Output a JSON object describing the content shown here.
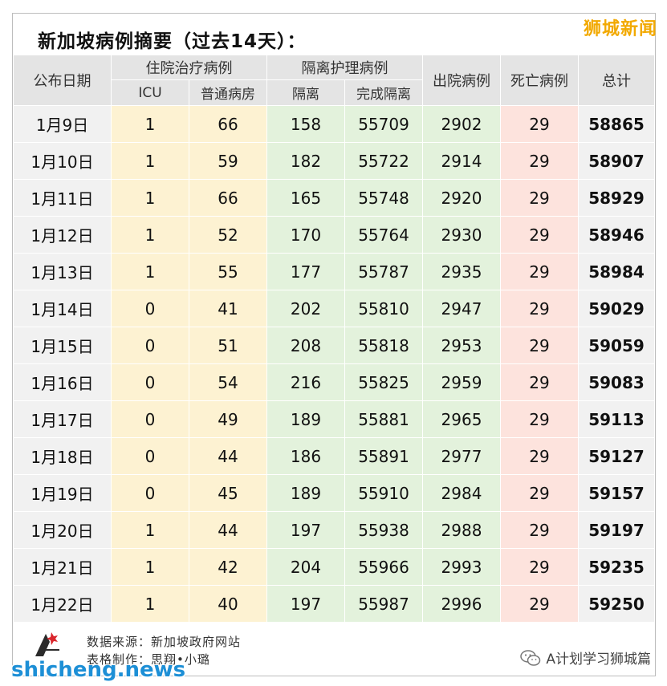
{
  "title": "新加坡病例摘要（过去14天）：",
  "brand": "狮城新闻",
  "headers": {
    "date": "公布日期",
    "hospital": "住院治疗病例",
    "isolation": "隔离护理病例",
    "discharged": "出院病例",
    "deaths": "死亡病例",
    "total": "总计",
    "icu": "ICU",
    "ward": "普通病房",
    "isolated": "隔离",
    "completed": "完成隔离"
  },
  "rows": [
    {
      "date": "1月9日",
      "icu": "1",
      "ward": "66",
      "iso": "158",
      "done": "55709",
      "dis": "2902",
      "death": "29",
      "total": "58865"
    },
    {
      "date": "1月10日",
      "icu": "1",
      "ward": "59",
      "iso": "182",
      "done": "55722",
      "dis": "2914",
      "death": "29",
      "total": "58907"
    },
    {
      "date": "1月11日",
      "icu": "1",
      "ward": "66",
      "iso": "165",
      "done": "55748",
      "dis": "2920",
      "death": "29",
      "total": "58929"
    },
    {
      "date": "1月12日",
      "icu": "1",
      "ward": "52",
      "iso": "170",
      "done": "55764",
      "dis": "2930",
      "death": "29",
      "total": "58946"
    },
    {
      "date": "1月13日",
      "icu": "1",
      "ward": "55",
      "iso": "177",
      "done": "55787",
      "dis": "2935",
      "death": "29",
      "total": "58984"
    },
    {
      "date": "1月14日",
      "icu": "0",
      "ward": "41",
      "iso": "202",
      "done": "55810",
      "dis": "2947",
      "death": "29",
      "total": "59029"
    },
    {
      "date": "1月15日",
      "icu": "0",
      "ward": "51",
      "iso": "208",
      "done": "55818",
      "dis": "2953",
      "death": "29",
      "total": "59059"
    },
    {
      "date": "1月16日",
      "icu": "0",
      "ward": "54",
      "iso": "216",
      "done": "55825",
      "dis": "2959",
      "death": "29",
      "total": "59083"
    },
    {
      "date": "1月17日",
      "icu": "0",
      "ward": "49",
      "iso": "189",
      "done": "55881",
      "dis": "2965",
      "death": "29",
      "total": "59113"
    },
    {
      "date": "1月18日",
      "icu": "0",
      "ward": "44",
      "iso": "186",
      "done": "55891",
      "dis": "2977",
      "death": "29",
      "total": "59127"
    },
    {
      "date": "1月19日",
      "icu": "0",
      "ward": "45",
      "iso": "189",
      "done": "55910",
      "dis": "2984",
      "death": "29",
      "total": "59157"
    },
    {
      "date": "1月20日",
      "icu": "1",
      "ward": "44",
      "iso": "197",
      "done": "55938",
      "dis": "2988",
      "death": "29",
      "total": "59197"
    },
    {
      "date": "1月21日",
      "icu": "1",
      "ward": "42",
      "iso": "204",
      "done": "55966",
      "dis": "2993",
      "death": "29",
      "total": "59235"
    },
    {
      "date": "1月22日",
      "icu": "1",
      "ward": "40",
      "iso": "197",
      "done": "55987",
      "dis": "2996",
      "death": "29",
      "total": "59250"
    }
  ],
  "footer": {
    "source": "数据来源：新加坡政府网站",
    "made_by": "表格制作：思翔•小璐",
    "site": "shicheng.news",
    "wechat": "A计划学习狮城篇"
  },
  "colors": {
    "hospital_bg": "#fdf2d2",
    "isolation_bg": "#e3f2dc",
    "deaths_bg": "#fde3dd",
    "header_bg": "#e4e4e4",
    "brand": "#f2a900",
    "site": "#1d8fd6"
  },
  "icons": [
    "logo-icon",
    "wechat-icon"
  ]
}
